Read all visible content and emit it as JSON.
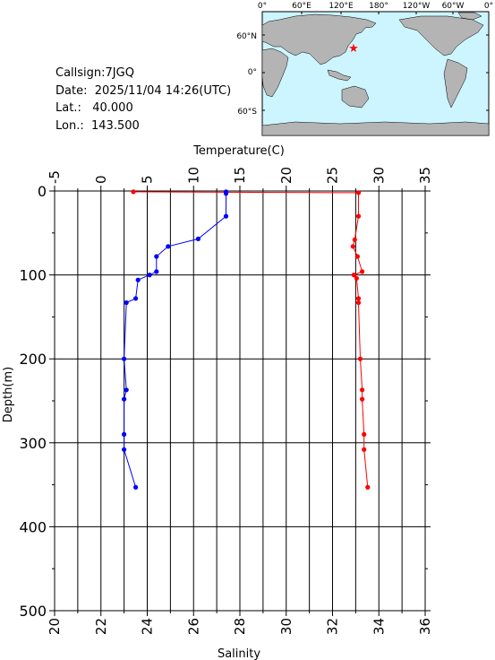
{
  "station": {
    "callsign_label": "Callsign:",
    "callsign": "7JGQ",
    "date_label": "Date:",
    "date": "2025/11/04 14:26(UTC)",
    "lat_label": "Lat.:",
    "lat": "40.000",
    "lon_label": "Lon.:",
    "lon": "143.500"
  },
  "map": {
    "top_lon_labels": [
      "0°",
      "60°E",
      "120°E",
      "180°",
      "120°W",
      "60°W",
      "0°"
    ],
    "lat_labels": [
      "60°N",
      "0°",
      "60°S"
    ],
    "ocean_color": "#ccf5ff",
    "land_color": "#b4b4b4",
    "marker_color": "#ff0000",
    "marker_icon": "star-icon"
  },
  "chart_data": {
    "type": "line",
    "top_axis_label": "Temperature(C)",
    "bottom_axis_label": "Salinity",
    "left_axis_label": "Depth(m)",
    "temperature_ticks": [
      "-5",
      "0",
      "5",
      "10",
      "15",
      "20",
      "25",
      "30",
      "35"
    ],
    "salinity_ticks": [
      "20",
      "22",
      "24",
      "26",
      "28",
      "30",
      "32",
      "34",
      "36"
    ],
    "depth_ticks": [
      "0",
      "100",
      "200",
      "300",
      "400",
      "500"
    ],
    "temperature_range": [
      -5,
      35
    ],
    "salinity_range": [
      20,
      36
    ],
    "depth_range": [
      0,
      500
    ],
    "grid": true,
    "series": [
      {
        "name": "",
        "quantity": "temperature",
        "color": "#ff0000",
        "points": [
          [
            3.5,
            1
          ],
          [
            27.8,
            2
          ],
          [
            27.8,
            30
          ],
          [
            27.4,
            58
          ],
          [
            27.2,
            66
          ],
          [
            27.7,
            78
          ],
          [
            28.2,
            96
          ],
          [
            27.3,
            100
          ],
          [
            27.6,
            104
          ],
          [
            27.8,
            128
          ],
          [
            27.8,
            133
          ],
          [
            28.0,
            200
          ],
          [
            28.2,
            237
          ],
          [
            28.2,
            248
          ],
          [
            28.4,
            290
          ],
          [
            28.4,
            308
          ],
          [
            28.8,
            353
          ]
        ]
      },
      {
        "name": "",
        "quantity": "salinity",
        "color": "#0000ff",
        "points": [
          [
            27.4,
            1
          ],
          [
            27.4,
            3
          ],
          [
            27.4,
            30
          ],
          [
            26.2,
            57
          ],
          [
            24.9,
            66
          ],
          [
            24.4,
            78
          ],
          [
            24.4,
            96
          ],
          [
            24.1,
            100
          ],
          [
            23.6,
            106
          ],
          [
            23.5,
            128
          ],
          [
            23.1,
            133
          ],
          [
            23.0,
            200
          ],
          [
            23.1,
            237
          ],
          [
            23.0,
            248
          ],
          [
            23.0,
            290
          ],
          [
            23.0,
            308
          ],
          [
            23.5,
            353
          ]
        ]
      }
    ]
  }
}
